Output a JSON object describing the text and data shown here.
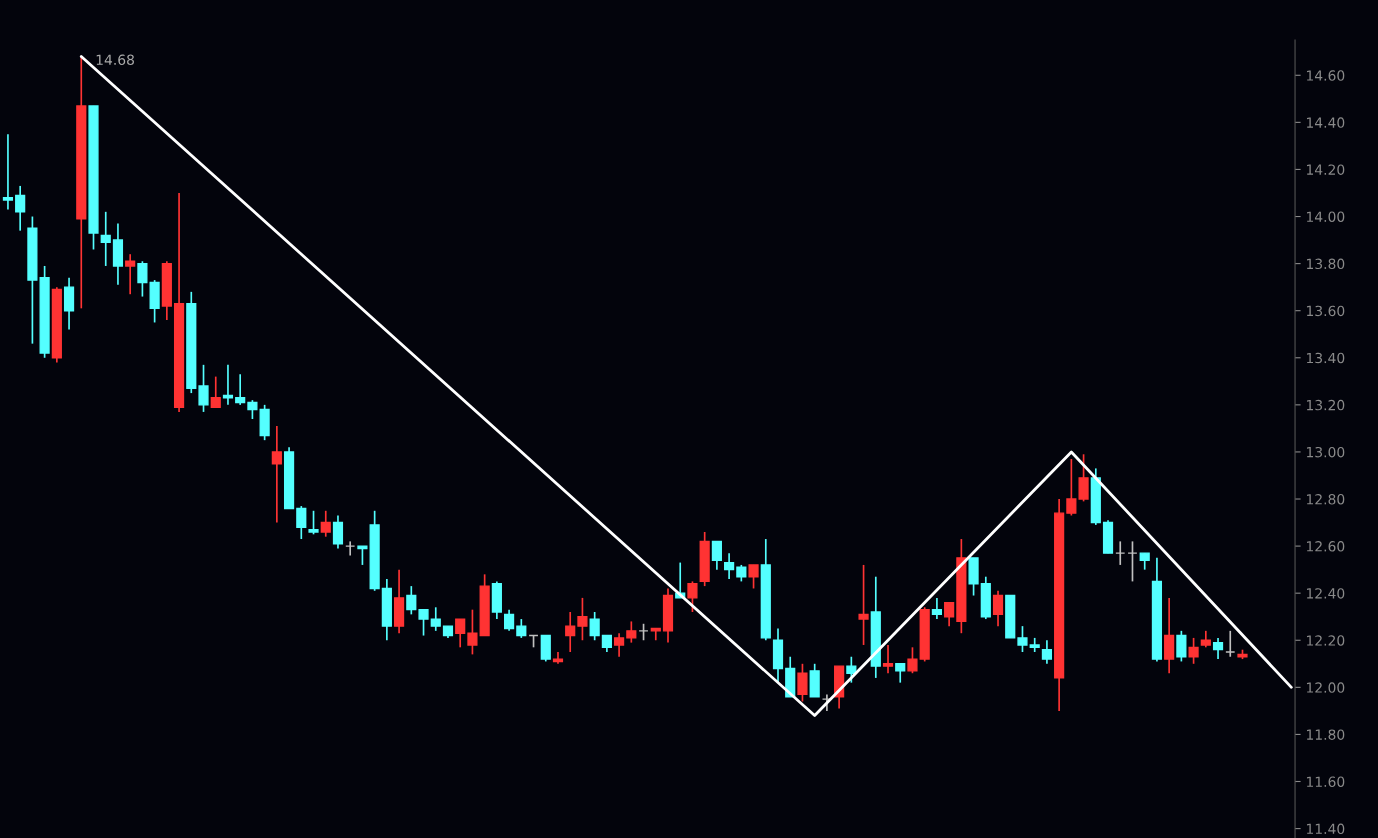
{
  "chart_data": {
    "type": "candlestick",
    "categories": [
      null,
      null,
      null,
      null,
      null,
      null,
      null,
      null,
      null,
      null,
      null,
      null,
      null,
      null,
      null,
      null,
      null,
      null,
      null,
      null,
      null,
      null,
      null,
      null,
      null,
      null,
      null,
      null,
      null,
      null,
      null,
      null,
      null,
      null,
      null,
      null,
      null,
      null,
      null,
      null,
      null,
      null,
      null,
      null,
      null,
      null,
      null,
      null,
      null,
      null,
      null,
      null,
      null,
      null,
      null,
      null,
      null,
      null,
      null,
      null,
      null,
      null,
      null,
      null,
      null,
      null,
      null,
      null,
      null,
      null,
      null,
      null,
      null,
      null,
      null,
      null,
      null,
      null,
      null,
      null,
      null,
      null,
      null,
      null,
      null,
      null,
      null,
      null,
      null,
      null,
      null,
      null,
      null,
      null,
      null,
      null,
      null,
      null,
      null,
      null,
      null,
      null,
      null,
      null,
      null,
      null
    ],
    "colors": [
      "#54ffff",
      "#54ffff",
      "#54ffff",
      "#54ffff",
      "#ff3333",
      "#54ffff",
      "#ff3333",
      "#54ffff",
      "#54ffff",
      "#54ffff",
      "#ff3333",
      "#54ffff",
      "#54ffff",
      "#ff3333",
      "#ff3333",
      "#54ffff",
      "#54ffff",
      "#ff3333",
      "#54ffff",
      "#54ffff",
      "#54ffff",
      "#54ffff",
      "#ff3333",
      "#54ffff",
      "#54ffff",
      "#54ffff",
      "#ff3333",
      "#54ffff",
      "#c0c0c0",
      "#54ffff",
      "#54ffff",
      "#54ffff",
      "#ff3333",
      "#54ffff",
      "#54ffff",
      "#54ffff",
      "#54ffff",
      "#ff3333",
      "#ff3333",
      "#ff3333",
      "#54ffff",
      "#54ffff",
      "#54ffff",
      "#c0c0c0",
      "#54ffff",
      "#ff3333",
      "#ff3333",
      "#ff3333",
      "#54ffff",
      "#54ffff",
      "#ff3333",
      "#ff3333",
      "#c0c0c0",
      "#ff3333",
      "#ff3333",
      "#54ffff",
      "#ff3333",
      "#ff3333",
      "#54ffff",
      "#54ffff",
      "#54ffff",
      "#ff3333",
      "#54ffff",
      "#54ffff",
      "#54ffff",
      "#ff3333",
      "#54ffff",
      "#c0c0c0",
      "#ff3333",
      "#54ffff",
      "#ff3333",
      "#54ffff",
      "#ff3333",
      "#54ffff",
      "#ff3333",
      "#ff3333",
      "#54ffff",
      "#ff3333",
      "#ff3333",
      "#54ffff",
      "#54ffff",
      "#ff3333",
      "#54ffff",
      "#54ffff",
      "#54ffff",
      "#54ffff",
      "#ff3333",
      "#ff3333",
      "#ff3333",
      "#54ffff",
      "#54ffff",
      "#c0c0c0",
      "#c0c0c0",
      "#54ffff",
      "#54ffff",
      "#ff3333",
      "#54ffff",
      "#ff3333",
      "#ff3333",
      "#54ffff",
      "#c0c0c0",
      "#ff3333",
      null,
      null,
      null,
      null
    ],
    "ohlc": [
      [
        14.08,
        14.35,
        14.03,
        14.07
      ],
      [
        14.09,
        14.13,
        13.94,
        14.02
      ],
      [
        13.95,
        14.0,
        13.46,
        13.73
      ],
      [
        13.74,
        13.79,
        13.4,
        13.42
      ],
      [
        13.4,
        13.7,
        13.38,
        13.69
      ],
      [
        13.7,
        13.74,
        13.52,
        13.6
      ],
      [
        13.99,
        14.68,
        13.61,
        14.47
      ],
      [
        14.47,
        14.47,
        13.86,
        13.93
      ],
      [
        13.92,
        14.02,
        13.79,
        13.89
      ],
      [
        13.9,
        13.97,
        13.71,
        13.79
      ],
      [
        13.79,
        13.84,
        13.67,
        13.81
      ],
      [
        13.8,
        13.81,
        13.66,
        13.72
      ],
      [
        13.72,
        13.73,
        13.55,
        13.61
      ],
      [
        13.62,
        13.81,
        13.56,
        13.8
      ],
      [
        13.19,
        14.1,
        13.17,
        13.63
      ],
      [
        13.63,
        13.68,
        13.25,
        13.27
      ],
      [
        13.28,
        13.37,
        13.17,
        13.2
      ],
      [
        13.19,
        13.32,
        13.19,
        13.23
      ],
      [
        13.24,
        13.37,
        13.2,
        13.23
      ],
      [
        13.23,
        13.33,
        13.2,
        13.21
      ],
      [
        13.21,
        13.22,
        13.14,
        13.18
      ],
      [
        13.18,
        13.2,
        13.05,
        13.07
      ],
      [
        12.95,
        13.11,
        12.7,
        13.0
      ],
      [
        13.0,
        13.02,
        12.76,
        12.76
      ],
      [
        12.76,
        12.77,
        12.63,
        12.68
      ],
      [
        12.67,
        12.75,
        12.65,
        12.66
      ],
      [
        12.66,
        12.75,
        12.64,
        12.7
      ],
      [
        12.7,
        12.73,
        12.59,
        12.61
      ],
      [
        12.6,
        12.62,
        12.56,
        12.6
      ],
      [
        12.6,
        12.6,
        12.52,
        12.59
      ],
      [
        12.69,
        12.75,
        12.41,
        12.42
      ],
      [
        12.42,
        12.46,
        12.2,
        12.26
      ],
      [
        12.26,
        12.5,
        12.23,
        12.38
      ],
      [
        12.39,
        12.43,
        12.31,
        12.33
      ],
      [
        12.33,
        12.33,
        12.22,
        12.29
      ],
      [
        12.29,
        12.34,
        12.24,
        12.26
      ],
      [
        12.26,
        12.26,
        12.21,
        12.22
      ],
      [
        12.23,
        12.29,
        12.17,
        12.29
      ],
      [
        12.18,
        12.33,
        12.14,
        12.23
      ],
      [
        12.22,
        12.48,
        12.22,
        12.43
      ],
      [
        12.44,
        12.45,
        12.29,
        12.32
      ],
      [
        12.31,
        12.33,
        12.24,
        12.25
      ],
      [
        12.26,
        12.29,
        12.21,
        12.22
      ],
      [
        12.22,
        12.22,
        12.17,
        12.22
      ],
      [
        12.22,
        12.22,
        12.11,
        12.12
      ],
      [
        12.11,
        12.15,
        12.1,
        12.12
      ],
      [
        12.22,
        12.32,
        12.15,
        12.26
      ],
      [
        12.26,
        12.38,
        12.2,
        12.3
      ],
      [
        12.29,
        12.32,
        12.2,
        12.22
      ],
      [
        12.22,
        12.22,
        12.15,
        12.17
      ],
      [
        12.18,
        12.23,
        12.13,
        12.21
      ],
      [
        12.21,
        12.28,
        12.19,
        12.24
      ],
      [
        12.24,
        12.27,
        12.2,
        12.24
      ],
      [
        12.24,
        12.25,
        12.2,
        12.25
      ],
      [
        12.24,
        12.42,
        12.19,
        12.39
      ],
      [
        12.4,
        12.53,
        12.38,
        12.38
      ],
      [
        12.38,
        12.45,
        12.32,
        12.44
      ],
      [
        12.45,
        12.66,
        12.43,
        12.62
      ],
      [
        12.62,
        12.62,
        12.5,
        12.54
      ],
      [
        12.53,
        12.57,
        12.46,
        12.5
      ],
      [
        12.51,
        12.52,
        12.45,
        12.47
      ],
      [
        12.47,
        12.52,
        12.42,
        12.52
      ],
      [
        12.52,
        12.63,
        12.2,
        12.21
      ],
      [
        12.2,
        12.25,
        12.02,
        12.08
      ],
      [
        12.08,
        12.13,
        11.96,
        11.96
      ],
      [
        11.97,
        12.1,
        11.94,
        12.06
      ],
      [
        12.07,
        12.1,
        11.96,
        11.96
      ],
      [
        11.95,
        11.97,
        11.9,
        11.95
      ],
      [
        11.96,
        12.09,
        11.91,
        12.09
      ],
      [
        12.09,
        12.13,
        12.02,
        12.06
      ],
      [
        12.29,
        12.52,
        12.18,
        12.31
      ],
      [
        12.32,
        12.47,
        12.04,
        12.09
      ],
      [
        12.09,
        12.18,
        12.06,
        12.1
      ],
      [
        12.1,
        12.1,
        12.02,
        12.07
      ],
      [
        12.07,
        12.17,
        12.06,
        12.12
      ],
      [
        12.12,
        12.34,
        12.11,
        12.33
      ],
      [
        12.33,
        12.38,
        12.29,
        12.31
      ],
      [
        12.3,
        12.36,
        12.26,
        12.36
      ],
      [
        12.28,
        12.63,
        12.23,
        12.55
      ],
      [
        12.55,
        12.55,
        12.39,
        12.44
      ],
      [
        12.44,
        12.47,
        12.29,
        12.3
      ],
      [
        12.31,
        12.41,
        12.26,
        12.39
      ],
      [
        12.39,
        12.39,
        12.21,
        12.21
      ],
      [
        12.21,
        12.26,
        12.15,
        12.18
      ],
      [
        12.18,
        12.21,
        12.15,
        12.17
      ],
      [
        12.16,
        12.2,
        12.1,
        12.12
      ],
      [
        12.04,
        12.8,
        11.9,
        12.74
      ],
      [
        12.74,
        12.97,
        12.73,
        12.8
      ],
      [
        12.8,
        12.99,
        12.79,
        12.89
      ],
      [
        12.89,
        12.93,
        12.69,
        12.7
      ],
      [
        12.7,
        12.71,
        12.57,
        12.57
      ],
      [
        12.57,
        12.62,
        12.52,
        12.57
      ],
      [
        12.57,
        12.62,
        12.45,
        12.57
      ],
      [
        12.57,
        12.57,
        12.5,
        12.54
      ],
      [
        12.45,
        12.55,
        12.11,
        12.12
      ],
      [
        12.12,
        12.38,
        12.06,
        12.22
      ],
      [
        12.22,
        12.24,
        12.11,
        12.13
      ],
      [
        12.13,
        12.21,
        12.1,
        12.17
      ],
      [
        12.18,
        12.24,
        12.17,
        12.2
      ],
      [
        12.19,
        12.21,
        12.12,
        12.16
      ],
      [
        12.15,
        12.24,
        12.13,
        12.15
      ],
      [
        12.13,
        12.16,
        12.12,
        12.14
      ],
      null,
      null,
      null,
      null
    ],
    "series": [
      {
        "type": "line",
        "color": "#ffffff",
        "values": [
          null,
          null,
          null,
          null,
          null,
          null,
          14.68,
          null,
          null,
          null,
          null,
          null,
          null,
          null,
          null,
          null,
          null,
          null,
          null,
          null,
          null,
          null,
          null,
          null,
          null,
          null,
          null,
          null,
          null,
          null,
          null,
          null,
          null,
          null,
          null,
          null,
          null,
          null,
          null,
          null,
          null,
          null,
          null,
          null,
          null,
          null,
          null,
          null,
          null,
          null,
          null,
          null,
          null,
          null,
          null,
          null,
          null,
          null,
          null,
          null,
          null,
          null,
          null,
          null,
          null,
          null,
          11.88,
          null,
          null,
          null,
          null,
          null,
          null,
          null,
          null,
          null,
          null,
          null,
          null,
          null,
          null,
          null,
          null,
          null,
          null,
          null,
          null,
          13.0,
          null,
          null,
          null,
          null,
          null,
          null,
          null,
          null,
          null,
          null,
          null,
          null,
          null,
          null,
          null,
          null,
          null,
          12.0
        ]
      }
    ],
    "annotations": [
      "14.68"
    ],
    "ylim": [
      11.36,
      14.75
    ],
    "yticks": [
      {
        "value": 11.4,
        "label": "11.40"
      },
      {
        "value": 11.6,
        "label": "11.60"
      },
      {
        "value": 11.8,
        "label": "11.80"
      },
      {
        "value": 12.0,
        "label": "12.00"
      },
      {
        "value": 12.2,
        "label": "12.20"
      },
      {
        "value": 12.4,
        "label": "12.40"
      },
      {
        "value": 12.6,
        "label": "12.60"
      },
      {
        "value": 12.8,
        "label": "12.80"
      },
      {
        "value": 13.0,
        "label": "13.00"
      },
      {
        "value": 13.2,
        "label": "13.20"
      },
      {
        "value": 13.4,
        "label": "13.40"
      },
      {
        "value": 13.6,
        "label": "13.60"
      },
      {
        "value": 13.8,
        "label": "13.80"
      },
      {
        "value": 14.0,
        "label": "14.00"
      },
      {
        "value": 14.2,
        "label": "14.20"
      },
      {
        "value": 14.4,
        "label": "14.40"
      },
      {
        "value": 14.6,
        "label": "14.60"
      }
    ],
    "tick_labels": "y",
    "grid": false,
    "legend": false
  }
}
